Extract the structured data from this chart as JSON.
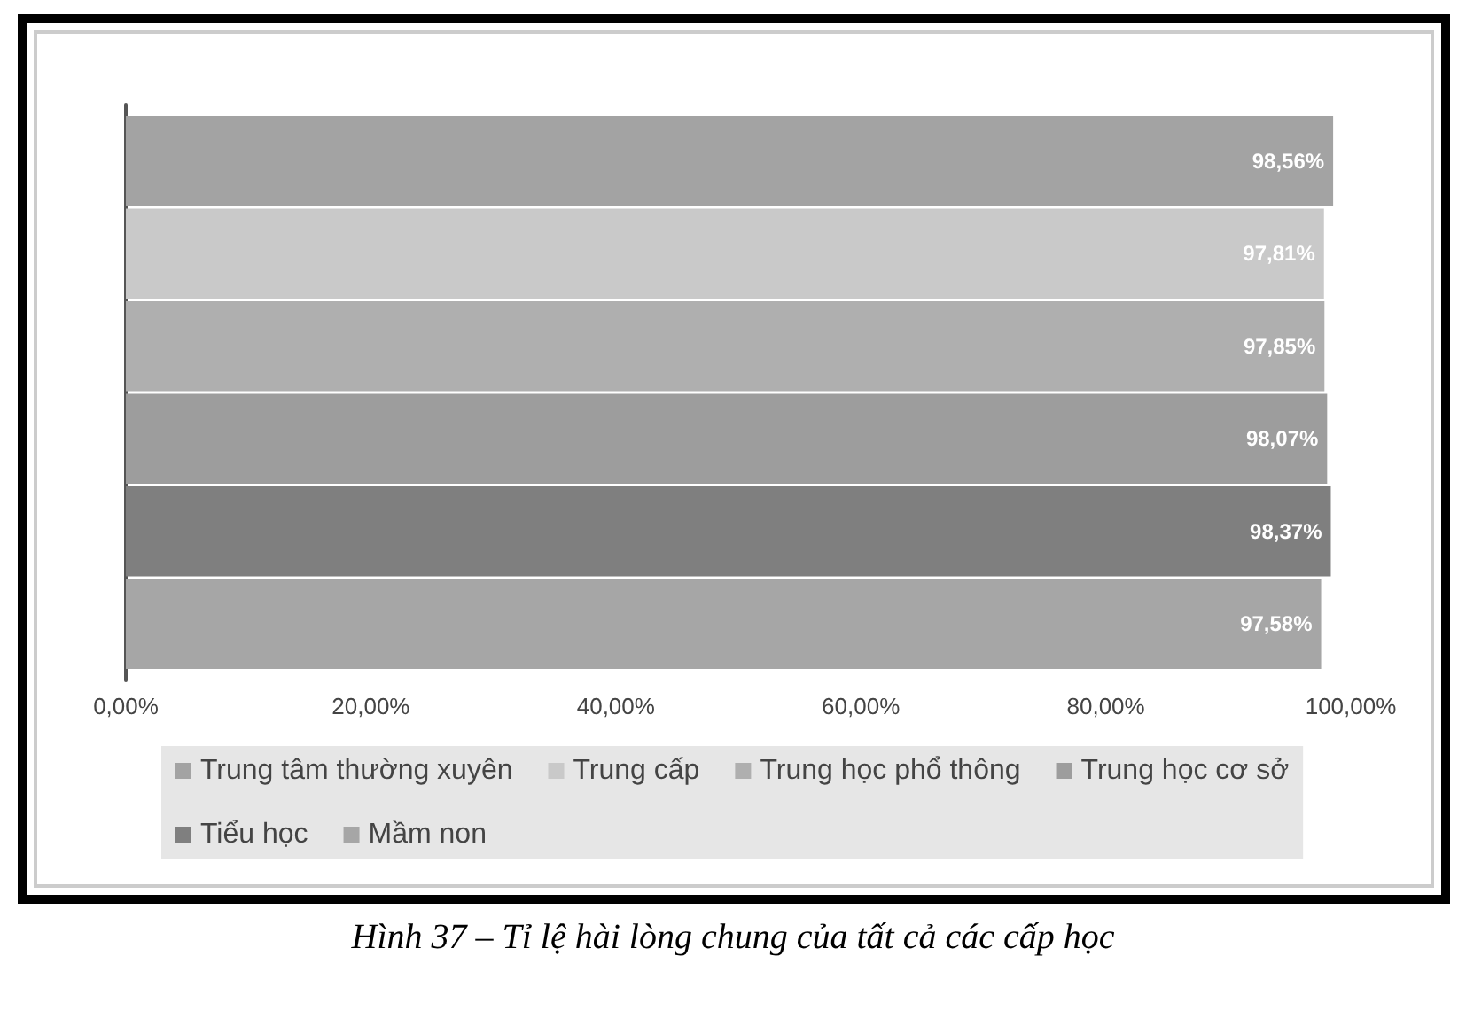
{
  "chart_data": {
    "type": "bar",
    "orientation": "horizontal",
    "categories": [
      null
    ],
    "series": [
      {
        "name": "Trung tâm thường xuyên",
        "color": "#a3a3a3",
        "values": [
          98.56
        ],
        "value_labels": [
          "98,56%"
        ]
      },
      {
        "name": "Trung cấp",
        "color": "#c9c9c9",
        "values": [
          97.81
        ],
        "value_labels": [
          "97,81%"
        ]
      },
      {
        "name": "Trung học phổ thông",
        "color": "#afafaf",
        "values": [
          97.85
        ],
        "value_labels": [
          "97,85%"
        ]
      },
      {
        "name": "Trung học cơ sở",
        "color": "#9d9d9d",
        "values": [
          98.07
        ],
        "value_labels": [
          "98,07%"
        ]
      },
      {
        "name": "Tiểu học",
        "color": "#7f7f7f",
        "values": [
          98.37
        ],
        "value_labels": [
          "98,37%"
        ]
      },
      {
        "name": "Mầm non",
        "color": "#a6a6a6",
        "values": [
          97.58
        ],
        "value_labels": [
          "97,58%"
        ]
      }
    ],
    "xlim": [
      0,
      100
    ],
    "xticks": [
      {
        "value": 0,
        "label": "0,00%"
      },
      {
        "value": 20,
        "label": "20,00%"
      },
      {
        "value": 40,
        "label": "40,00%"
      },
      {
        "value": 60,
        "label": "60,00%"
      },
      {
        "value": 80,
        "label": "80,00%"
      },
      {
        "value": 100,
        "label": "100,00%"
      }
    ],
    "grid": false,
    "legend": "bottom",
    "annotations": [
      "Hình 37 – Tỉ lệ hài lòng chung của tất cả các cấp học"
    ]
  }
}
